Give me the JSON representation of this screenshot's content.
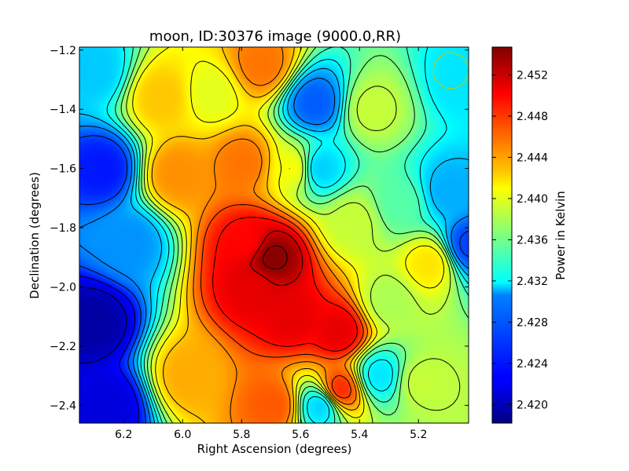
{
  "chart_data": {
    "type": "heatmap",
    "title": "moon, ID:30376 image (9000.0,RR)",
    "xlabel": "Right Ascension (degrees)",
    "ylabel": "Declination (degrees)",
    "xlim": [
      6.35,
      5.03
    ],
    "ylim": [
      -2.46,
      -1.19
    ],
    "x_ticks": [
      6.2,
      6.0,
      5.8,
      5.6,
      5.4,
      5.2
    ],
    "x_tick_labels": [
      "6.2",
      "6.0",
      "5.8",
      "5.6",
      "5.4",
      "5.2"
    ],
    "y_ticks": [
      -1.2,
      -1.4,
      -1.6,
      -1.8,
      -2.0,
      -2.2,
      -2.4
    ],
    "y_tick_labels": [
      "−1.2",
      "−1.4",
      "−1.6",
      "−1.8",
      "−2.0",
      "−2.2",
      "−2.4"
    ],
    "colorbar": {
      "label": "Power in Kelvin",
      "colormap": "jet",
      "range": [
        2.4182,
        2.4547
      ],
      "ticks": [
        2.42,
        2.424,
        2.428,
        2.432,
        2.436,
        2.44,
        2.444,
        2.448,
        2.452
      ],
      "tick_labels": [
        "2.420",
        "2.424",
        "2.428",
        "2.432",
        "2.436",
        "2.440",
        "2.444",
        "2.448",
        "2.452"
      ]
    },
    "features": [
      {
        "ra": 6.3,
        "dec": -2.12,
        "value": 2.4195
      },
      {
        "ra": 6.27,
        "dec": -1.6,
        "value": 2.4235
      },
      {
        "ra": 6.25,
        "dec": -2.4,
        "value": 2.4215
      },
      {
        "ra": 6.3,
        "dec": -1.27,
        "value": 2.43
      },
      {
        "ra": 6.18,
        "dec": -1.85,
        "value": 2.428
      },
      {
        "ra": 5.78,
        "dec": -1.85,
        "value": 2.45
      },
      {
        "ra": 5.7,
        "dec": -1.9,
        "value": 2.4545
      },
      {
        "ra": 5.76,
        "dec": -2.0,
        "value": 2.451
      },
      {
        "ra": 5.63,
        "dec": -2.1,
        "value": 2.451
      },
      {
        "ra": 5.73,
        "dec": -1.25,
        "value": 2.446
      },
      {
        "ra": 5.79,
        "dec": -1.58,
        "value": 2.446
      },
      {
        "ra": 5.69,
        "dec": -2.4,
        "value": 2.447
      },
      {
        "ra": 5.47,
        "dec": -2.15,
        "value": 2.451
      },
      {
        "ra": 5.47,
        "dec": -2.35,
        "value": 2.449
      },
      {
        "ra": 5.55,
        "dec": -1.38,
        "value": 2.426
      },
      {
        "ra": 5.54,
        "dec": -1.6,
        "value": 2.43
      },
      {
        "ra": 5.53,
        "dec": -2.4,
        "value": 2.43
      },
      {
        "ra": 5.33,
        "dec": -2.3,
        "value": 2.431
      },
      {
        "ra": 5.03,
        "dec": -1.86,
        "value": 2.425
      },
      {
        "ra": 5.1,
        "dec": -1.68,
        "value": 2.429
      },
      {
        "ra": 5.05,
        "dec": -1.3,
        "value": 2.431
      },
      {
        "ra": 6.02,
        "dec": -1.62,
        "value": 2.445
      },
      {
        "ra": 5.98,
        "dec": -2.3,
        "value": 2.444
      },
      {
        "ra": 6.07,
        "dec": -1.36,
        "value": 2.443
      },
      {
        "ra": 5.42,
        "dec": -1.78,
        "value": 2.439
      },
      {
        "ra": 5.26,
        "dec": -1.72,
        "value": 2.435
      },
      {
        "ra": 5.16,
        "dec": -1.92,
        "value": 2.442
      },
      {
        "ra": 5.2,
        "dec": -2.32,
        "value": 2.439
      },
      {
        "ra": 5.9,
        "dec": -1.35,
        "value": 2.44
      },
      {
        "ra": 5.36,
        "dec": -1.4,
        "value": 2.439
      },
      {
        "ra": 5.62,
        "dec": -1.6,
        "value": 2.441
      },
      {
        "ra": 5.3,
        "dec": -2.05,
        "value": 2.438
      }
    ],
    "beam_marker": {
      "ra": 5.09,
      "dec": -1.27,
      "radius_deg": 0.06,
      "color": "#c8c800"
    },
    "grid": false
  }
}
